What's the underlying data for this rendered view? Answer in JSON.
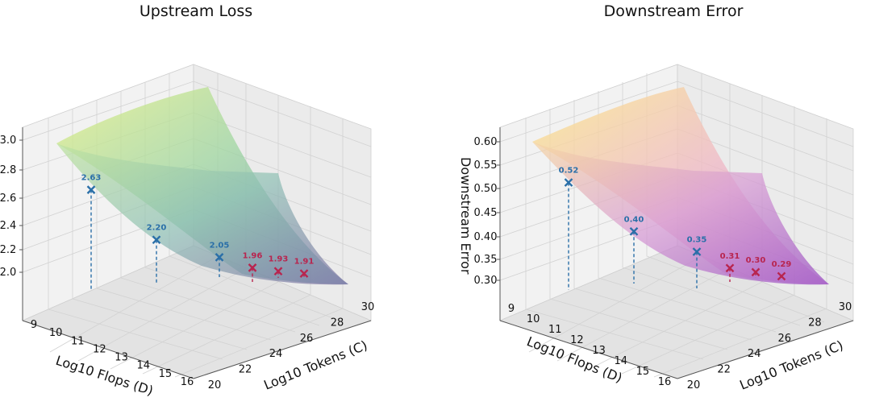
{
  "chart_data": [
    {
      "type": "surface3d",
      "title": "Upstream Loss",
      "xlabel": "Log10 Flops (D)",
      "ylabel": "Log10 Tokens (C)",
      "zlabel": "",
      "x_ticks": [
        "9",
        "10",
        "11",
        "12",
        "13",
        "14",
        "15",
        "16"
      ],
      "y_ticks": [
        "20",
        "22",
        "24",
        "26",
        "28",
        "30"
      ],
      "z_ticks": [
        "2.0",
        "2.2",
        "2.4",
        "2.6",
        "2.8",
        "3.0"
      ],
      "zlim": [
        1.9,
        3.05
      ],
      "colormap": "viridis",
      "points": [
        {
          "label": "2.63",
          "value": 2.63,
          "color": "#2a6fa8"
        },
        {
          "label": "2.20",
          "value": 2.2,
          "color": "#2a6fa8"
        },
        {
          "label": "2.05",
          "value": 2.05,
          "color": "#2a6fa8"
        },
        {
          "label": "1.96",
          "value": 1.96,
          "color": "#b8254f"
        },
        {
          "label": "1.93",
          "value": 1.93,
          "color": "#b8254f"
        },
        {
          "label": "1.91",
          "value": 1.91,
          "color": "#b8254f"
        }
      ]
    },
    {
      "type": "surface3d",
      "title": "Downstream Error",
      "xlabel": "Log10 Flops (D)",
      "ylabel": "Log10 Tokens (C)",
      "zlabel": "Downstream Error",
      "x_ticks": [
        "9",
        "10",
        "11",
        "12",
        "13",
        "14",
        "15",
        "16"
      ],
      "y_ticks": [
        "20",
        "22",
        "24",
        "26",
        "28",
        "30"
      ],
      "z_ticks": [
        "0.30",
        "0.35",
        "0.40",
        "0.45",
        "0.50",
        "0.55",
        "0.60"
      ],
      "zlim": [
        0.28,
        0.62
      ],
      "colormap": "plasma",
      "points": [
        {
          "label": "0.52",
          "value": 0.52,
          "color": "#2a6fa8"
        },
        {
          "label": "0.40",
          "value": 0.4,
          "color": "#2a6fa8"
        },
        {
          "label": "0.35",
          "value": 0.35,
          "color": "#2a6fa8"
        },
        {
          "label": "0.31",
          "value": 0.31,
          "color": "#b8254f"
        },
        {
          "label": "0.30",
          "value": 0.3,
          "color": "#b8254f"
        },
        {
          "label": "0.29",
          "value": 0.29,
          "color": "#b8254f"
        }
      ]
    }
  ]
}
